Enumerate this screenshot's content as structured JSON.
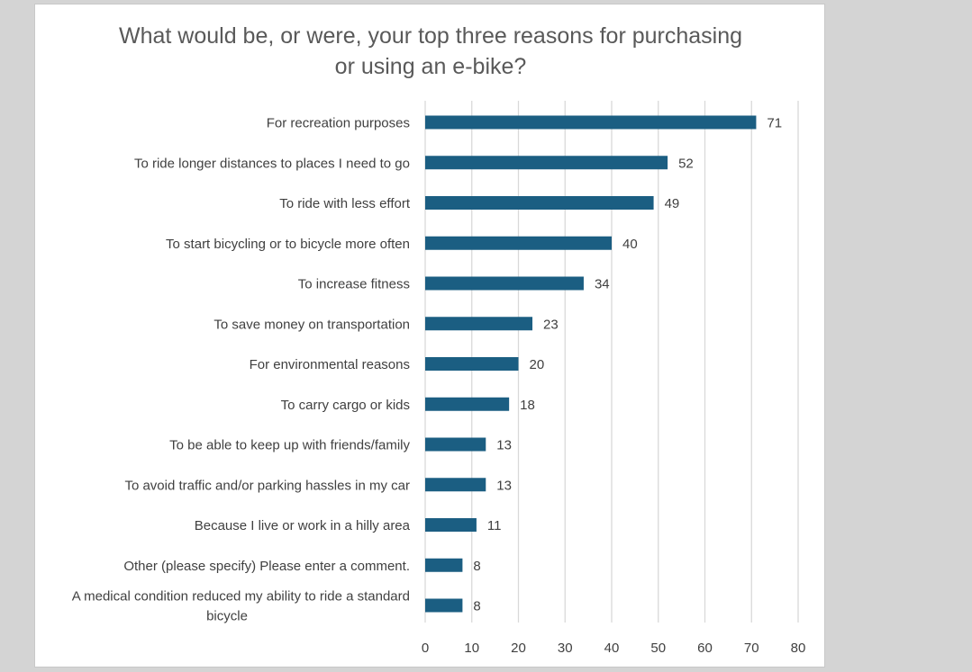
{
  "chart_data": {
    "type": "bar",
    "orientation": "horizontal",
    "title": "What would be, or were, your top three reasons for purchasing or using an e-bike?",
    "title_lines": [
      "What would be, or were, your top three reasons for purchasing",
      "or using an e-bike?"
    ],
    "categories": [
      "For recreation purposes",
      "To ride longer distances to places I need to go",
      "To ride with less effort",
      "To start bicycling or to bicycle more often",
      "To increase fitness",
      "To save money on transportation",
      "For environmental reasons",
      "To carry cargo or kids",
      "To be able to keep up with friends/family",
      "To avoid traffic and/or parking hassles in my car",
      "Because I live or work in a hilly area",
      "Other (please specify) Please enter a comment.",
      "A medical condition reduced my ability to ride a standard bicycle"
    ],
    "category_lines": [
      [
        "For recreation purposes"
      ],
      [
        "To ride longer distances to places I need to go"
      ],
      [
        "To ride with less effort"
      ],
      [
        "To start bicycling or to bicycle more often"
      ],
      [
        "To increase fitness"
      ],
      [
        "To save money on transportation"
      ],
      [
        "For environmental reasons"
      ],
      [
        "To carry cargo or kids"
      ],
      [
        "To be able to keep up with friends/family"
      ],
      [
        "To avoid traffic and/or parking hassles in my car"
      ],
      [
        "Because I live or work in a hilly area"
      ],
      [
        "Other (please specify) Please enter a comment."
      ],
      [
        "A medical condition reduced my ability to ride a standard",
        "bicycle"
      ]
    ],
    "values": [
      71,
      52,
      49,
      40,
      34,
      23,
      20,
      18,
      13,
      13,
      11,
      8,
      8
    ],
    "xlim": [
      0,
      80
    ],
    "xticks": [
      0,
      10,
      20,
      30,
      40,
      50,
      60,
      70,
      80
    ],
    "xlabel": "",
    "ylabel": "",
    "grid": "vertical",
    "legend": "none",
    "data_labels": true,
    "colors": {
      "bar": "#1b5e82",
      "grid": "#d9d9d9",
      "text": "#404040",
      "title": "#595959"
    }
  }
}
